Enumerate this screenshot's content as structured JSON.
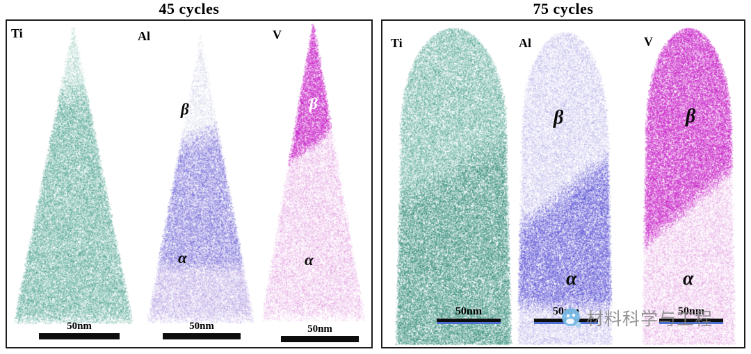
{
  "panels": [
    {
      "title": "45 cycles",
      "tips": [
        {
          "element": "Ti",
          "scale": "50nm"
        },
        {
          "element": "Al",
          "scale": "50nm",
          "phases": {
            "upper": "β",
            "lower": "α"
          }
        },
        {
          "element": "V",
          "scale": "50nm",
          "phases": {
            "upper": "β",
            "lower": "α"
          }
        }
      ]
    },
    {
      "title": "75 cycles",
      "tips": [
        {
          "element": "Ti",
          "scale": "50nm"
        },
        {
          "element": "Al",
          "scale": "50nm",
          "phases": {
            "upper": "β",
            "lower": "α"
          }
        },
        {
          "element": "V",
          "scale": "50nm",
          "phases": {
            "upper": "β",
            "lower": "α"
          }
        }
      ]
    }
  ],
  "colors": {
    "ti": "#2e8b78",
    "al": "#4646cc",
    "v": "#cc1fcc",
    "scalebar_accent": "#4a6fd0"
  },
  "watermark": {
    "text": "材料科学与工程"
  }
}
